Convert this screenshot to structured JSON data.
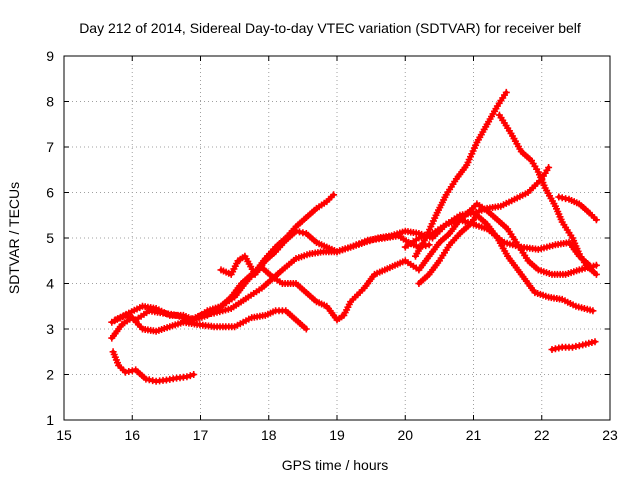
{
  "chart_data": {
    "type": "scatter",
    "title": "Day 212 of 2014, Sidereal Day-to-day VTEC variation (SDTVAR) for receiver belf",
    "xlabel": "GPS time / hours",
    "ylabel": "SDTVAR / TECUs",
    "xlim": [
      15,
      23
    ],
    "ylim": [
      1,
      9
    ],
    "x_ticks": [
      "15",
      "16",
      "17",
      "18",
      "19",
      "20",
      "21",
      "22",
      "23"
    ],
    "y_ticks": [
      "1",
      "2",
      "3",
      "4",
      "5",
      "6",
      "7",
      "8",
      "9"
    ],
    "grid": true,
    "marker": "plus",
    "color": "#ff0000",
    "series": [
      {
        "name": "trace-1",
        "points": [
          [
            15.72,
            2.5
          ],
          [
            15.8,
            2.2
          ],
          [
            15.9,
            2.05
          ],
          [
            16.05,
            2.1
          ],
          [
            16.2,
            1.9
          ],
          [
            16.35,
            1.85
          ],
          [
            16.5,
            1.88
          ],
          [
            16.65,
            1.92
          ],
          [
            16.8,
            1.95
          ],
          [
            16.9,
            2.0
          ]
        ]
      },
      {
        "name": "trace-2",
        "points": [
          [
            15.7,
            2.8
          ],
          [
            15.85,
            3.1
          ],
          [
            16.0,
            3.25
          ],
          [
            16.15,
            3.0
          ],
          [
            16.35,
            2.95
          ],
          [
            16.55,
            3.05
          ],
          [
            16.75,
            3.15
          ],
          [
            16.95,
            3.1
          ],
          [
            17.2,
            3.05
          ],
          [
            17.5,
            3.05
          ],
          [
            17.75,
            3.25
          ],
          [
            17.95,
            3.3
          ],
          [
            18.1,
            3.4
          ],
          [
            18.25,
            3.4
          ],
          [
            18.4,
            3.2
          ],
          [
            18.55,
            3.0
          ]
        ]
      },
      {
        "name": "trace-3",
        "points": [
          [
            15.7,
            3.15
          ],
          [
            15.9,
            3.3
          ],
          [
            16.05,
            3.2
          ],
          [
            16.25,
            3.4
          ],
          [
            16.45,
            3.35
          ],
          [
            16.65,
            3.3
          ],
          [
            16.85,
            3.2
          ],
          [
            17.0,
            3.3
          ],
          [
            17.2,
            3.35
          ],
          [
            17.45,
            3.45
          ],
          [
            17.7,
            3.7
          ],
          [
            17.9,
            3.9
          ],
          [
            18.05,
            4.1
          ],
          [
            18.2,
            4.3
          ],
          [
            18.4,
            4.55
          ],
          [
            18.6,
            4.65
          ],
          [
            18.8,
            4.7
          ],
          [
            19.0,
            4.7
          ],
          [
            19.2,
            4.8
          ],
          [
            19.45,
            4.95
          ],
          [
            19.7,
            5.0
          ],
          [
            19.9,
            5.05
          ],
          [
            20.05,
            4.9
          ],
          [
            20.2,
            4.8
          ],
          [
            20.35,
            4.85
          ]
        ]
      },
      {
        "name": "trace-4",
        "points": [
          [
            15.75,
            3.2
          ],
          [
            15.95,
            3.35
          ],
          [
            16.15,
            3.5
          ],
          [
            16.35,
            3.45
          ],
          [
            16.55,
            3.3
          ],
          [
            16.75,
            3.3
          ],
          [
            16.9,
            3.2
          ],
          [
            17.1,
            3.4
          ],
          [
            17.3,
            3.5
          ],
          [
            17.5,
            3.7
          ],
          [
            17.65,
            4.0
          ],
          [
            17.8,
            4.25
          ],
          [
            17.95,
            4.55
          ],
          [
            18.1,
            4.8
          ],
          [
            18.25,
            5.0
          ],
          [
            18.4,
            5.25
          ],
          [
            18.55,
            5.45
          ],
          [
            18.7,
            5.65
          ],
          [
            18.85,
            5.8
          ],
          [
            18.95,
            5.95
          ]
        ]
      },
      {
        "name": "trace-5",
        "points": [
          [
            16.9,
            3.2
          ],
          [
            17.1,
            3.3
          ],
          [
            17.3,
            3.5
          ],
          [
            17.45,
            3.7
          ],
          [
            17.6,
            4.0
          ],
          [
            17.75,
            4.2
          ],
          [
            17.9,
            4.35
          ],
          [
            18.05,
            4.15
          ],
          [
            18.2,
            4.0
          ],
          [
            18.4,
            4.0
          ],
          [
            18.55,
            3.8
          ],
          [
            18.7,
            3.6
          ],
          [
            18.85,
            3.5
          ],
          [
            19.0,
            3.2
          ],
          [
            19.1,
            3.3
          ],
          [
            19.2,
            3.6
          ],
          [
            19.4,
            3.9
          ],
          [
            19.55,
            4.2
          ],
          [
            19.7,
            4.3
          ],
          [
            19.85,
            4.4
          ],
          [
            20.0,
            4.5
          ],
          [
            20.2,
            4.3
          ],
          [
            20.35,
            4.6
          ],
          [
            20.5,
            4.9
          ],
          [
            20.65,
            5.1
          ],
          [
            20.8,
            5.4
          ],
          [
            20.95,
            5.6
          ],
          [
            21.05,
            5.75
          ],
          [
            21.2,
            5.6
          ],
          [
            21.35,
            5.4
          ],
          [
            21.5,
            5.2
          ],
          [
            21.65,
            4.85
          ],
          [
            21.8,
            4.5
          ],
          [
            21.95,
            4.3
          ],
          [
            22.15,
            4.2
          ],
          [
            22.35,
            4.2
          ],
          [
            22.55,
            4.3
          ],
          [
            22.8,
            4.4
          ]
        ]
      },
      {
        "name": "trace-6",
        "points": [
          [
            17.3,
            4.3
          ],
          [
            17.45,
            4.2
          ],
          [
            17.55,
            4.5
          ],
          [
            17.65,
            4.6
          ],
          [
            17.8,
            4.2
          ],
          [
            17.95,
            4.5
          ],
          [
            18.1,
            4.7
          ],
          [
            18.25,
            4.95
          ],
          [
            18.4,
            5.15
          ],
          [
            18.55,
            5.1
          ],
          [
            18.7,
            4.9
          ],
          [
            18.85,
            4.8
          ],
          [
            19.0,
            4.7
          ],
          [
            19.2,
            4.8
          ],
          [
            19.4,
            4.9
          ],
          [
            19.6,
            5.0
          ],
          [
            19.8,
            5.05
          ],
          [
            20.0,
            5.15
          ],
          [
            20.2,
            5.1
          ],
          [
            20.4,
            5.0
          ],
          [
            20.6,
            5.3
          ],
          [
            20.8,
            5.4
          ],
          [
            21.0,
            5.3
          ],
          [
            21.2,
            5.2
          ],
          [
            21.45,
            4.9
          ],
          [
            21.7,
            4.8
          ],
          [
            21.95,
            4.75
          ],
          [
            22.2,
            4.85
          ],
          [
            22.4,
            4.9
          ],
          [
            22.55,
            4.6
          ],
          [
            22.7,
            4.4
          ]
        ]
      },
      {
        "name": "trace-7",
        "points": [
          [
            20.15,
            4.6
          ],
          [
            20.3,
            5.0
          ],
          [
            20.45,
            5.5
          ],
          [
            20.6,
            5.95
          ],
          [
            20.75,
            6.3
          ],
          [
            20.9,
            6.6
          ],
          [
            21.05,
            7.1
          ],
          [
            21.2,
            7.5
          ],
          [
            21.35,
            7.9
          ],
          [
            21.48,
            8.2
          ]
        ]
      },
      {
        "name": "trace-8",
        "points": [
          [
            21.38,
            7.7
          ],
          [
            21.55,
            7.3
          ],
          [
            21.7,
            6.9
          ],
          [
            21.85,
            6.7
          ],
          [
            21.95,
            6.45
          ],
          [
            22.05,
            6.1
          ],
          [
            22.2,
            5.7
          ],
          [
            22.3,
            5.35
          ],
          [
            22.45,
            5.0
          ],
          [
            22.55,
            4.65
          ],
          [
            22.65,
            4.4
          ],
          [
            22.8,
            4.2
          ]
        ]
      },
      {
        "name": "trace-9",
        "points": [
          [
            20.2,
            4.0
          ],
          [
            20.35,
            4.2
          ],
          [
            20.5,
            4.5
          ],
          [
            20.65,
            4.85
          ],
          [
            20.8,
            5.1
          ],
          [
            20.95,
            5.3
          ],
          [
            21.05,
            5.5
          ],
          [
            21.2,
            5.3
          ],
          [
            21.35,
            5.0
          ],
          [
            21.5,
            4.6
          ],
          [
            21.7,
            4.2
          ],
          [
            21.9,
            3.8
          ],
          [
            22.1,
            3.7
          ],
          [
            22.3,
            3.65
          ],
          [
            22.5,
            3.5
          ],
          [
            22.75,
            3.4
          ]
        ]
      },
      {
        "name": "trace-10",
        "points": [
          [
            20.0,
            4.8
          ],
          [
            20.2,
            5.0
          ],
          [
            20.4,
            5.1
          ],
          [
            20.6,
            5.3
          ],
          [
            20.8,
            5.5
          ],
          [
            21.0,
            5.55
          ],
          [
            21.2,
            5.65
          ],
          [
            21.4,
            5.7
          ],
          [
            21.6,
            5.85
          ],
          [
            21.8,
            6.0
          ],
          [
            22.0,
            6.3
          ],
          [
            22.1,
            6.55
          ]
        ]
      },
      {
        "name": "trace-11",
        "points": [
          [
            22.15,
            2.55
          ],
          [
            22.3,
            2.6
          ],
          [
            22.45,
            2.6
          ],
          [
            22.6,
            2.65
          ],
          [
            22.78,
            2.72
          ]
        ]
      },
      {
        "name": "trace-12",
        "points": [
          [
            22.25,
            5.9
          ],
          [
            22.4,
            5.85
          ],
          [
            22.55,
            5.75
          ],
          [
            22.7,
            5.55
          ],
          [
            22.8,
            5.4
          ]
        ]
      }
    ]
  }
}
